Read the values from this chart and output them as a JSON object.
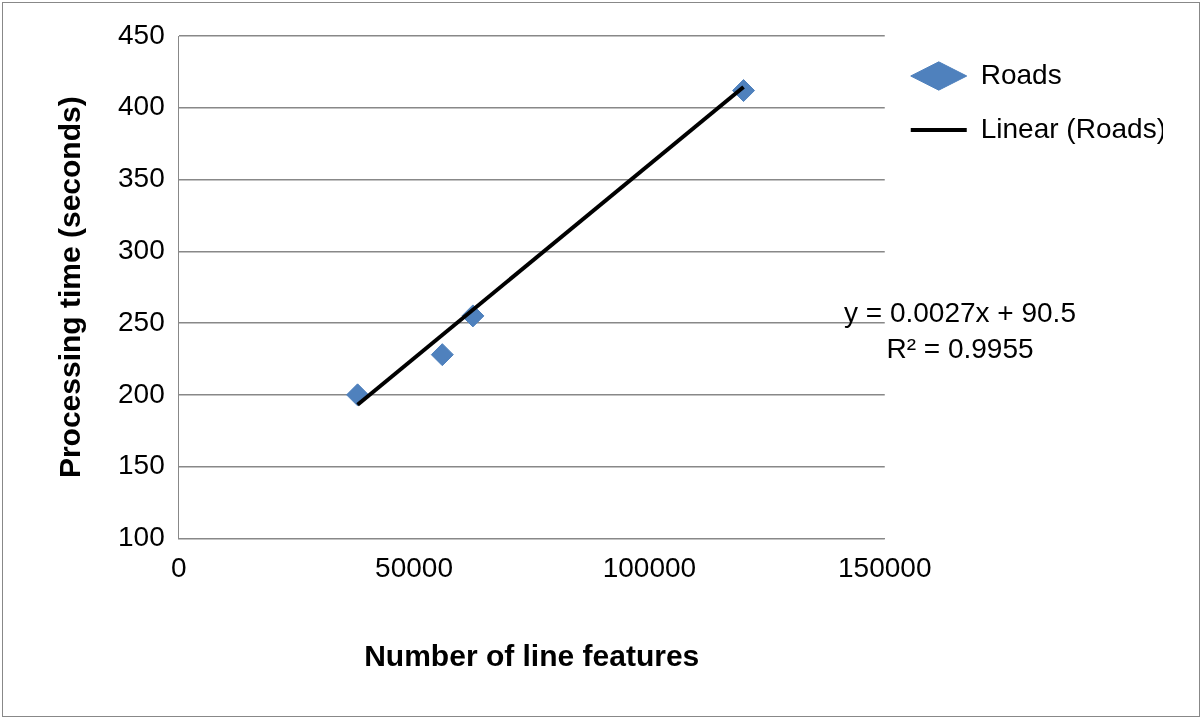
{
  "chart_data": {
    "type": "scatter",
    "xlabel": "Number of line features",
    "ylabel": "Processing time (seconds)",
    "xlim": [
      0,
      150000
    ],
    "xticks": [
      0,
      50000,
      100000,
      150000
    ],
    "ylim": [
      100,
      450
    ],
    "yticks": [
      100,
      150,
      200,
      250,
      300,
      350,
      400,
      450
    ],
    "grid": "y",
    "legend": "right",
    "marker": "diamond",
    "series": [
      {
        "name": "Roads",
        "color": "#4f81bd",
        "x": [
          38000,
          56000,
          62500,
          120000
        ],
        "values": [
          200,
          228,
          255,
          412
        ]
      },
      {
        "name": "Linear (Roads)",
        "type": "line",
        "color": "#000000",
        "marker": "none",
        "x": [
          38000,
          120000
        ],
        "values": [
          193.1,
          414.5
        ]
      }
    ],
    "annotations": [
      "y = 0.0027x + 90.5",
      "R² = 0.9955"
    ]
  }
}
